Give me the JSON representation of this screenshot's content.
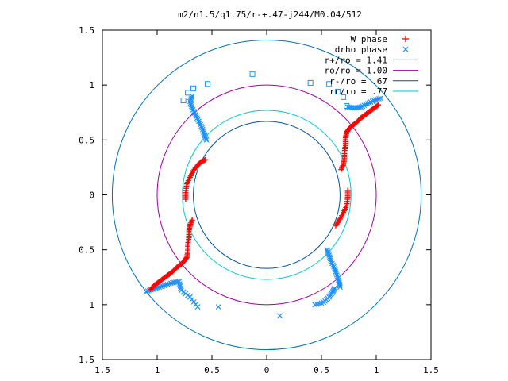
{
  "chart_data": {
    "type": "scatter",
    "title": "m2/n1.5/q1.75/r-+.47-j244/M0.04/512",
    "xlim": [
      -1.5,
      1.5
    ],
    "ylim": [
      -1.5,
      1.5
    ],
    "x_tick_labels": [
      "1.5",
      "1",
      "0.5",
      "0",
      "0.5",
      "1",
      "1.5"
    ],
    "y_tick_labels": [
      "1.5",
      "1",
      "0.5",
      "0",
      "0.5",
      "1",
      "1.5"
    ],
    "x_tick_values": [
      -1.5,
      -1,
      -0.5,
      0,
      0.5,
      1,
      1.5
    ],
    "y_tick_values": [
      1.5,
      1,
      0.5,
      0,
      -0.5,
      -1,
      -1.5
    ],
    "grid": false,
    "legend_position": "top-right",
    "series": [
      {
        "name": "W phase",
        "kind": "points",
        "marker": "plus",
        "color": "#ff0000",
        "arms": [
          {
            "from_r": 0.7,
            "to_r": 1.05,
            "theta_deg": [
              40,
              26
            ],
            "points": []
          },
          {
            "from_r": 0.7,
            "to_r": 1.05,
            "theta_deg": [
              220,
              206
            ]
          }
        ]
      },
      {
        "name": "drho phase",
        "kind": "points",
        "marker": "x",
        "color": "#1e90ff"
      },
      {
        "name": "r+/ro = 1.41",
        "kind": "circle",
        "radius": 1.41,
        "color": "#0072b2"
      },
      {
        "name": "ro/ro = 1.00",
        "kind": "circle",
        "radius": 1.0,
        "color": "#a000a0"
      },
      {
        "name": "r-/ro = .67",
        "kind": "circle",
        "radius": 0.67,
        "color": "#0050a0"
      },
      {
        "name": "rc/ro = .77",
        "kind": "circle",
        "radius": 0.77,
        "color": "#00c8c8"
      }
    ],
    "w_phase_points": [
      [
        0.68,
        0.23
      ],
      [
        0.7,
        0.28
      ],
      [
        0.71,
        0.33
      ],
      [
        0.71,
        0.39
      ],
      [
        0.72,
        0.45
      ],
      [
        0.72,
        0.52
      ],
      [
        0.73,
        0.57
      ],
      [
        0.75,
        0.6
      ],
      [
        0.78,
        0.63
      ],
      [
        0.82,
        0.66
      ],
      [
        0.86,
        0.7
      ],
      [
        0.9,
        0.73
      ],
      [
        0.94,
        0.76
      ],
      [
        0.98,
        0.79
      ],
      [
        1.02,
        0.82
      ],
      [
        0.74,
        0.04
      ],
      [
        0.74,
        -0.02
      ],
      [
        0.73,
        -0.1
      ],
      [
        0.7,
        -0.16
      ],
      [
        0.67,
        -0.22
      ],
      [
        0.63,
        -0.28
      ],
      [
        -0.68,
        -0.23
      ],
      [
        -0.7,
        -0.28
      ],
      [
        -0.71,
        -0.33
      ],
      [
        -0.71,
        -0.39
      ],
      [
        -0.72,
        -0.45
      ],
      [
        -0.72,
        -0.52
      ],
      [
        -0.73,
        -0.57
      ],
      [
        -0.75,
        -0.6
      ],
      [
        -0.78,
        -0.63
      ],
      [
        -0.82,
        -0.66
      ],
      [
        -0.86,
        -0.7
      ],
      [
        -0.9,
        -0.73
      ],
      [
        -0.94,
        -0.76
      ],
      [
        -0.98,
        -0.79
      ],
      [
        -1.02,
        -0.82
      ],
      [
        -1.06,
        -0.86
      ],
      [
        -0.74,
        -0.04
      ],
      [
        -0.74,
        0.02
      ],
      [
        -0.73,
        0.1
      ],
      [
        -0.7,
        0.16
      ],
      [
        -0.67,
        0.22
      ],
      [
        -0.63,
        0.27
      ],
      [
        -0.6,
        0.3
      ],
      [
        -0.56,
        0.32
      ]
    ],
    "drho_x_points": [
      [
        -0.55,
        0.5
      ],
      [
        -0.57,
        0.55
      ],
      [
        -0.59,
        0.61
      ],
      [
        -0.62,
        0.67
      ],
      [
        -0.65,
        0.73
      ],
      [
        -0.68,
        0.79
      ],
      [
        -0.7,
        0.85
      ],
      [
        -0.68,
        0.9
      ],
      [
        0.55,
        -0.5
      ],
      [
        0.57,
        -0.55
      ],
      [
        0.59,
        -0.61
      ],
      [
        0.62,
        -0.67
      ],
      [
        0.64,
        -0.73
      ],
      [
        0.66,
        -0.79
      ],
      [
        0.67,
        -0.84
      ],
      [
        0.74,
        0.8
      ],
      [
        0.8,
        0.79
      ],
      [
        0.86,
        0.8
      ],
      [
        0.92,
        0.83
      ],
      [
        0.98,
        0.86
      ],
      [
        1.04,
        0.88
      ],
      [
        -1.1,
        -0.88
      ],
      [
        -1.04,
        -0.86
      ],
      [
        -0.98,
        -0.84
      ],
      [
        -0.92,
        -0.82
      ],
      [
        -0.86,
        -0.8
      ],
      [
        -0.8,
        -0.79
      ],
      [
        -0.78,
        -0.87
      ],
      [
        -0.7,
        -0.93
      ],
      [
        -0.63,
        -1.02
      ],
      [
        -0.44,
        -1.02
      ],
      [
        0.12,
        -1.1
      ],
      [
        0.44,
        -1.0
      ],
      [
        0.52,
        -0.98
      ],
      [
        0.57,
        -0.93
      ],
      [
        0.6,
        -0.89
      ],
      [
        0.62,
        -0.85
      ]
    ],
    "drho_square_points": [
      [
        -0.54,
        1.01
      ],
      [
        -0.67,
        0.97
      ],
      [
        -0.72,
        0.93
      ],
      [
        -0.76,
        0.86
      ],
      [
        -0.13,
        1.1
      ],
      [
        0.4,
        1.02
      ],
      [
        0.57,
        1.01
      ],
      [
        0.65,
        0.94
      ],
      [
        0.7,
        0.89
      ],
      [
        0.73,
        0.81
      ]
    ],
    "legend_entries": [
      {
        "label": "W phase",
        "marker": "plus",
        "color": "#ff0000"
      },
      {
        "label": "drho phase",
        "marker": "x",
        "color": "#1e90ff"
      },
      {
        "label": "r+/ro = 1.41",
        "marker": "line",
        "color": "#0072b2"
      },
      {
        "label": "ro/ro = 1.00",
        "marker": "line",
        "color": "#a000a0"
      },
      {
        "label": "r-/ro = .67",
        "marker": "line",
        "color": "#0050a0"
      },
      {
        "label": "rc/ro = .77",
        "marker": "line",
        "color": "#00c8c8"
      }
    ]
  }
}
